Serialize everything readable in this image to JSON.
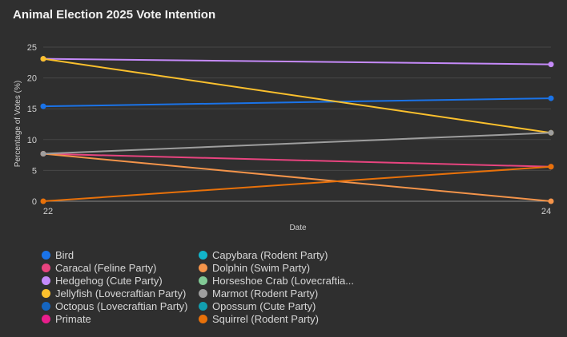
{
  "chart_data": {
    "type": "line",
    "title": "Animal Election 2025 Vote Intention",
    "xlabel": "Date",
    "ylabel": "Percentage of Votes (%)",
    "x": [
      "22",
      "24"
    ],
    "ylim": [
      0,
      25
    ],
    "yticks": [
      0,
      5,
      10,
      15,
      20,
      25
    ],
    "grid": true,
    "legend_position": "bottom",
    "series": [
      {
        "name": "Bird",
        "color": "#1a73e8",
        "values": [
          15.4,
          16.7
        ]
      },
      {
        "name": "Caracal (Feline Party)",
        "color": "#e8447f",
        "values": [
          7.7,
          5.6
        ]
      },
      {
        "name": "Hedgehog (Cute Party)",
        "color": "#c58af9",
        "values": [
          23.1,
          22.2
        ]
      },
      {
        "name": "Jellyfish (Lovecraftian Party)",
        "color": "#fbc02d",
        "values": [
          23.1,
          11.1
        ]
      },
      {
        "name": "Octopus (Lovecraftian Party)",
        "color": "#1565c0",
        "values": [
          null,
          null
        ]
      },
      {
        "name": "Primate",
        "color": "#e91e8c",
        "values": [
          null,
          null
        ]
      },
      {
        "name": "Capybara (Rodent Party)",
        "color": "#12b5cb",
        "values": [
          null,
          null
        ]
      },
      {
        "name": "Dolphin (Swim Party)",
        "color": "#f4944a",
        "values": [
          7.7,
          0
        ]
      },
      {
        "name": "Horseshoe Crab (Lovecraftia...",
        "color": "#81c995",
        "values": [
          null,
          null
        ]
      },
      {
        "name": "Marmot (Rodent Party)",
        "color": "#9e9e9e",
        "values": [
          7.7,
          11.1
        ]
      },
      {
        "name": "Opossum (Cute Party)",
        "color": "#129eaf",
        "values": [
          null,
          null
        ]
      },
      {
        "name": "Squirrel (Rodent Party)",
        "color": "#e8710a",
        "values": [
          0,
          5.6
        ]
      }
    ]
  }
}
